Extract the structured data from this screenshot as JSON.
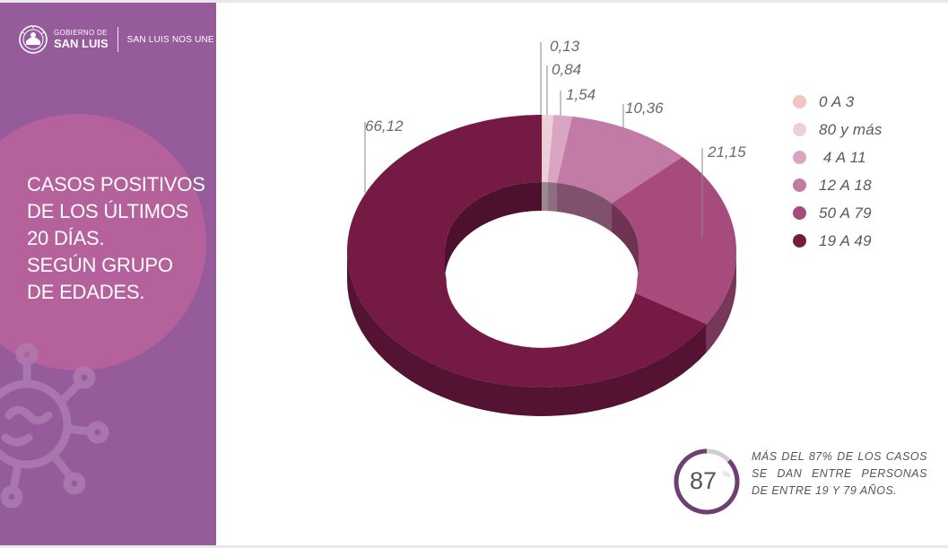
{
  "sidebar": {
    "logo_line1": "GOBIERNO DE",
    "logo_line2": "SAN LUIS",
    "slogan": "SAN LUIS NOS UNE",
    "title": "CASOS POSITIVOS\nDE LOS ÚLTIMOS\n20 DÍAS.\nSEGÚN GRUPO\nDE EDADES."
  },
  "chart_data": {
    "type": "pie",
    "style": "3d-donut",
    "title": "",
    "legend_position": "right",
    "slices": [
      {
        "label": "0 A 3",
        "value": 0.13,
        "value_label": "0,13",
        "color": "#f0c6bf"
      },
      {
        "label": "80 y más",
        "value": 0.84,
        "value_label": "0,84",
        "color": "#ebcfd9"
      },
      {
        "label": " 4 A 11",
        "value": 1.54,
        "value_label": "1,54",
        "color": "#d9a5c2"
      },
      {
        "label": "12 A 18",
        "value": 10.36,
        "value_label": "10,36",
        "color": "#c27ba4"
      },
      {
        "label": "50 A 79",
        "value": 21.15,
        "value_label": "21,15",
        "color": "#a74b7c"
      },
      {
        "label": "19 A 49",
        "value": 66.12,
        "value_label": "66,12",
        "color": "#741a45"
      }
    ]
  },
  "kpi": {
    "value": "87",
    "unit": "%",
    "fraction": 0.87,
    "text": "MÁS DEL 87% DE LOS CASOS SE DAN ENTRE PERSONAS DE ENTRE 19 Y 79 AÑOS.",
    "ring_color": "#6e3f72",
    "track_color": "#cfcfcf"
  }
}
